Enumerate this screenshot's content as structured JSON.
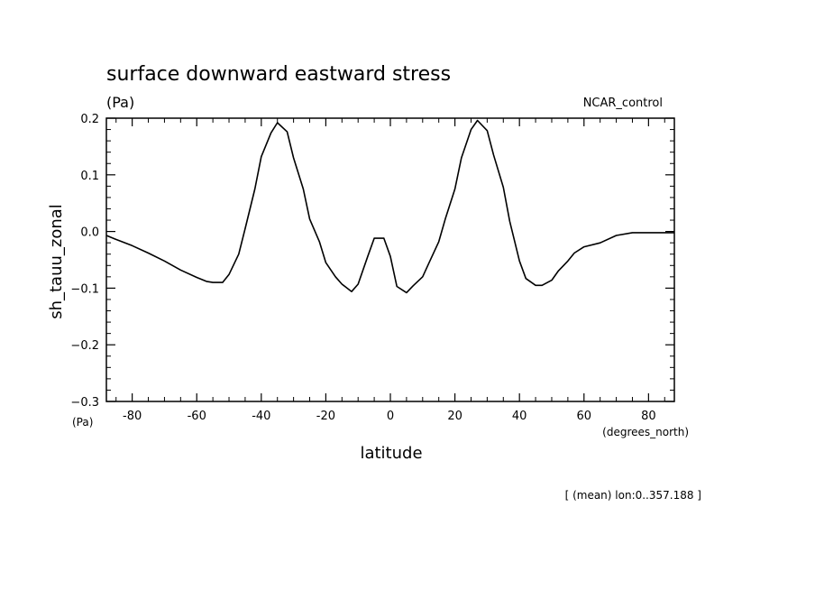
{
  "chart_data": {
    "type": "line",
    "title": "surface downward eastward stress",
    "units_label": "(Pa)",
    "case_label": "NCAR_control",
    "ylabel": "sh_tauu_zonal",
    "xlabel": "latitude",
    "x_units": "(degrees_north)",
    "y_units_corner": "(Pa)",
    "footnote": "[ (mean) lon:0..357.188 ]",
    "xlim": [
      -88,
      88
    ],
    "ylim": [
      -0.3,
      0.2
    ],
    "x_ticks": [
      "-80",
      "-60",
      "-40",
      "-20",
      "0",
      "20",
      "40",
      "60",
      "80"
    ],
    "x_tick_values": [
      -80,
      -60,
      -40,
      -20,
      0,
      20,
      40,
      60,
      80
    ],
    "y_ticks": [
      "0.2",
      "0.1",
      "0.0",
      "−0.1",
      "−0.2",
      "−0.3"
    ],
    "y_tick_values": [
      0.2,
      0.1,
      0.0,
      -0.1,
      -0.2,
      -0.3
    ],
    "line_color": "#000000",
    "series": [
      {
        "x": [
          -88,
          -85,
          -80,
          -75,
          -70,
          -65,
          -60,
          -57,
          -55,
          -52,
          -50,
          -47,
          -45,
          -42,
          -40,
          -37,
          -35,
          -32,
          -30,
          -27,
          -25,
          -22,
          -20,
          -17,
          -15,
          -12,
          -10,
          -7,
          -5,
          -2,
          0,
          2,
          5,
          7,
          10,
          12,
          15,
          17,
          20,
          22,
          25,
          27,
          30,
          32,
          35,
          37,
          40,
          42,
          45,
          47,
          50,
          52,
          55,
          57,
          60,
          65,
          70,
          75,
          80,
          85,
          88
        ],
        "y": [
          -0.007,
          -0.014,
          -0.025,
          -0.038,
          -0.052,
          -0.068,
          -0.081,
          -0.088,
          -0.09,
          -0.09,
          -0.076,
          -0.04,
          0.005,
          0.075,
          0.132,
          0.174,
          0.192,
          0.176,
          0.13,
          0.075,
          0.022,
          -0.018,
          -0.055,
          -0.08,
          -0.093,
          -0.106,
          -0.093,
          -0.044,
          -0.012,
          -0.012,
          -0.044,
          -0.097,
          -0.108,
          -0.096,
          -0.08,
          -0.055,
          -0.018,
          0.022,
          0.075,
          0.13,
          0.18,
          0.196,
          0.178,
          0.135,
          0.078,
          0.018,
          -0.052,
          -0.083,
          -0.095,
          -0.095,
          -0.086,
          -0.07,
          -0.052,
          -0.038,
          -0.027,
          -0.02,
          -0.007,
          -0.002,
          -0.002,
          -0.002,
          -0.002
        ]
      }
    ]
  }
}
